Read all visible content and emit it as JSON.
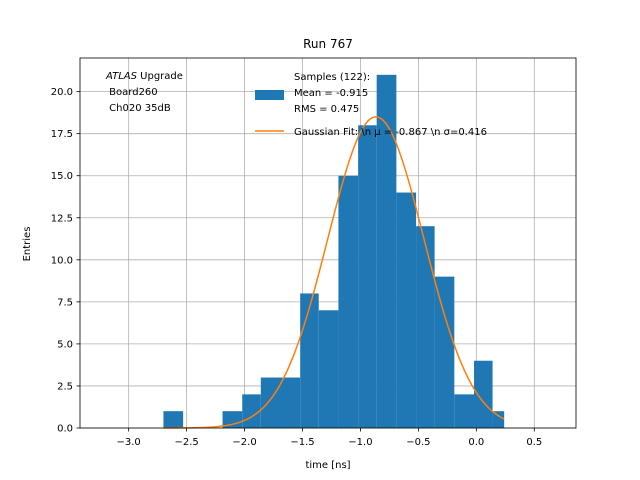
{
  "chart_data": {
    "type": "bar",
    "title": "Run 767",
    "xlabel": "time [ns]",
    "ylabel": "Entries",
    "xlim": [
      -3.42,
      0.86
    ],
    "ylim": [
      0,
      22
    ],
    "grid": true,
    "xticks": [
      -3.0,
      -2.5,
      -2.0,
      -1.5,
      -1.0,
      -0.5,
      0.0,
      0.5
    ],
    "xtick_labels": [
      "−3.0",
      "−2.5",
      "−2.0",
      "−1.5",
      "−1.0",
      "−0.5",
      "0.0",
      "0.5"
    ],
    "yticks": [
      0.0,
      2.5,
      5.0,
      7.5,
      10.0,
      12.5,
      15.0,
      17.5,
      20.0
    ],
    "ytick_labels": [
      "0.0",
      "2.5",
      "5.0",
      "7.5",
      "10.0",
      "12.5",
      "15.0",
      "17.5",
      "20.0"
    ],
    "histogram": {
      "bin_edges": [
        -2.7,
        -2.53,
        -2.19,
        -2.02,
        -1.86,
        -1.69,
        -1.52,
        -1.36,
        -1.19,
        -1.02,
        -0.86,
        -0.69,
        -0.52,
        -0.36,
        -0.19,
        -0.02,
        0.14,
        0.24
      ],
      "counts": [
        1,
        0,
        1,
        2,
        3,
        3,
        8,
        7,
        15,
        18,
        21,
        14,
        12,
        9,
        2,
        4,
        1
      ],
      "color": "#1f77b4"
    },
    "gaussian_fit": {
      "mu": -0.867,
      "sigma": 0.416,
      "amplitude": 18.5,
      "x_range": [
        -2.7,
        0.24
      ],
      "color": "#ff7f0e"
    },
    "legend": {
      "placement": "top-right",
      "entries": [
        {
          "label_lines": [
            "Samples (122):",
            " Mean = -0.915",
            " RMS = 0.475"
          ],
          "marker": "patch",
          "color": "#1f77b4"
        },
        {
          "label_lines": [
            "Gaussian Fit: \\n μ = -0.867 \\n σ=0.416"
          ],
          "marker": "line",
          "color": "#ff7f0e"
        }
      ]
    },
    "annotation": {
      "line1_italic": "ATLAS",
      "line1_rest": " Upgrade",
      "line2": " Board260",
      "line3": " Ch020 35dB"
    }
  }
}
